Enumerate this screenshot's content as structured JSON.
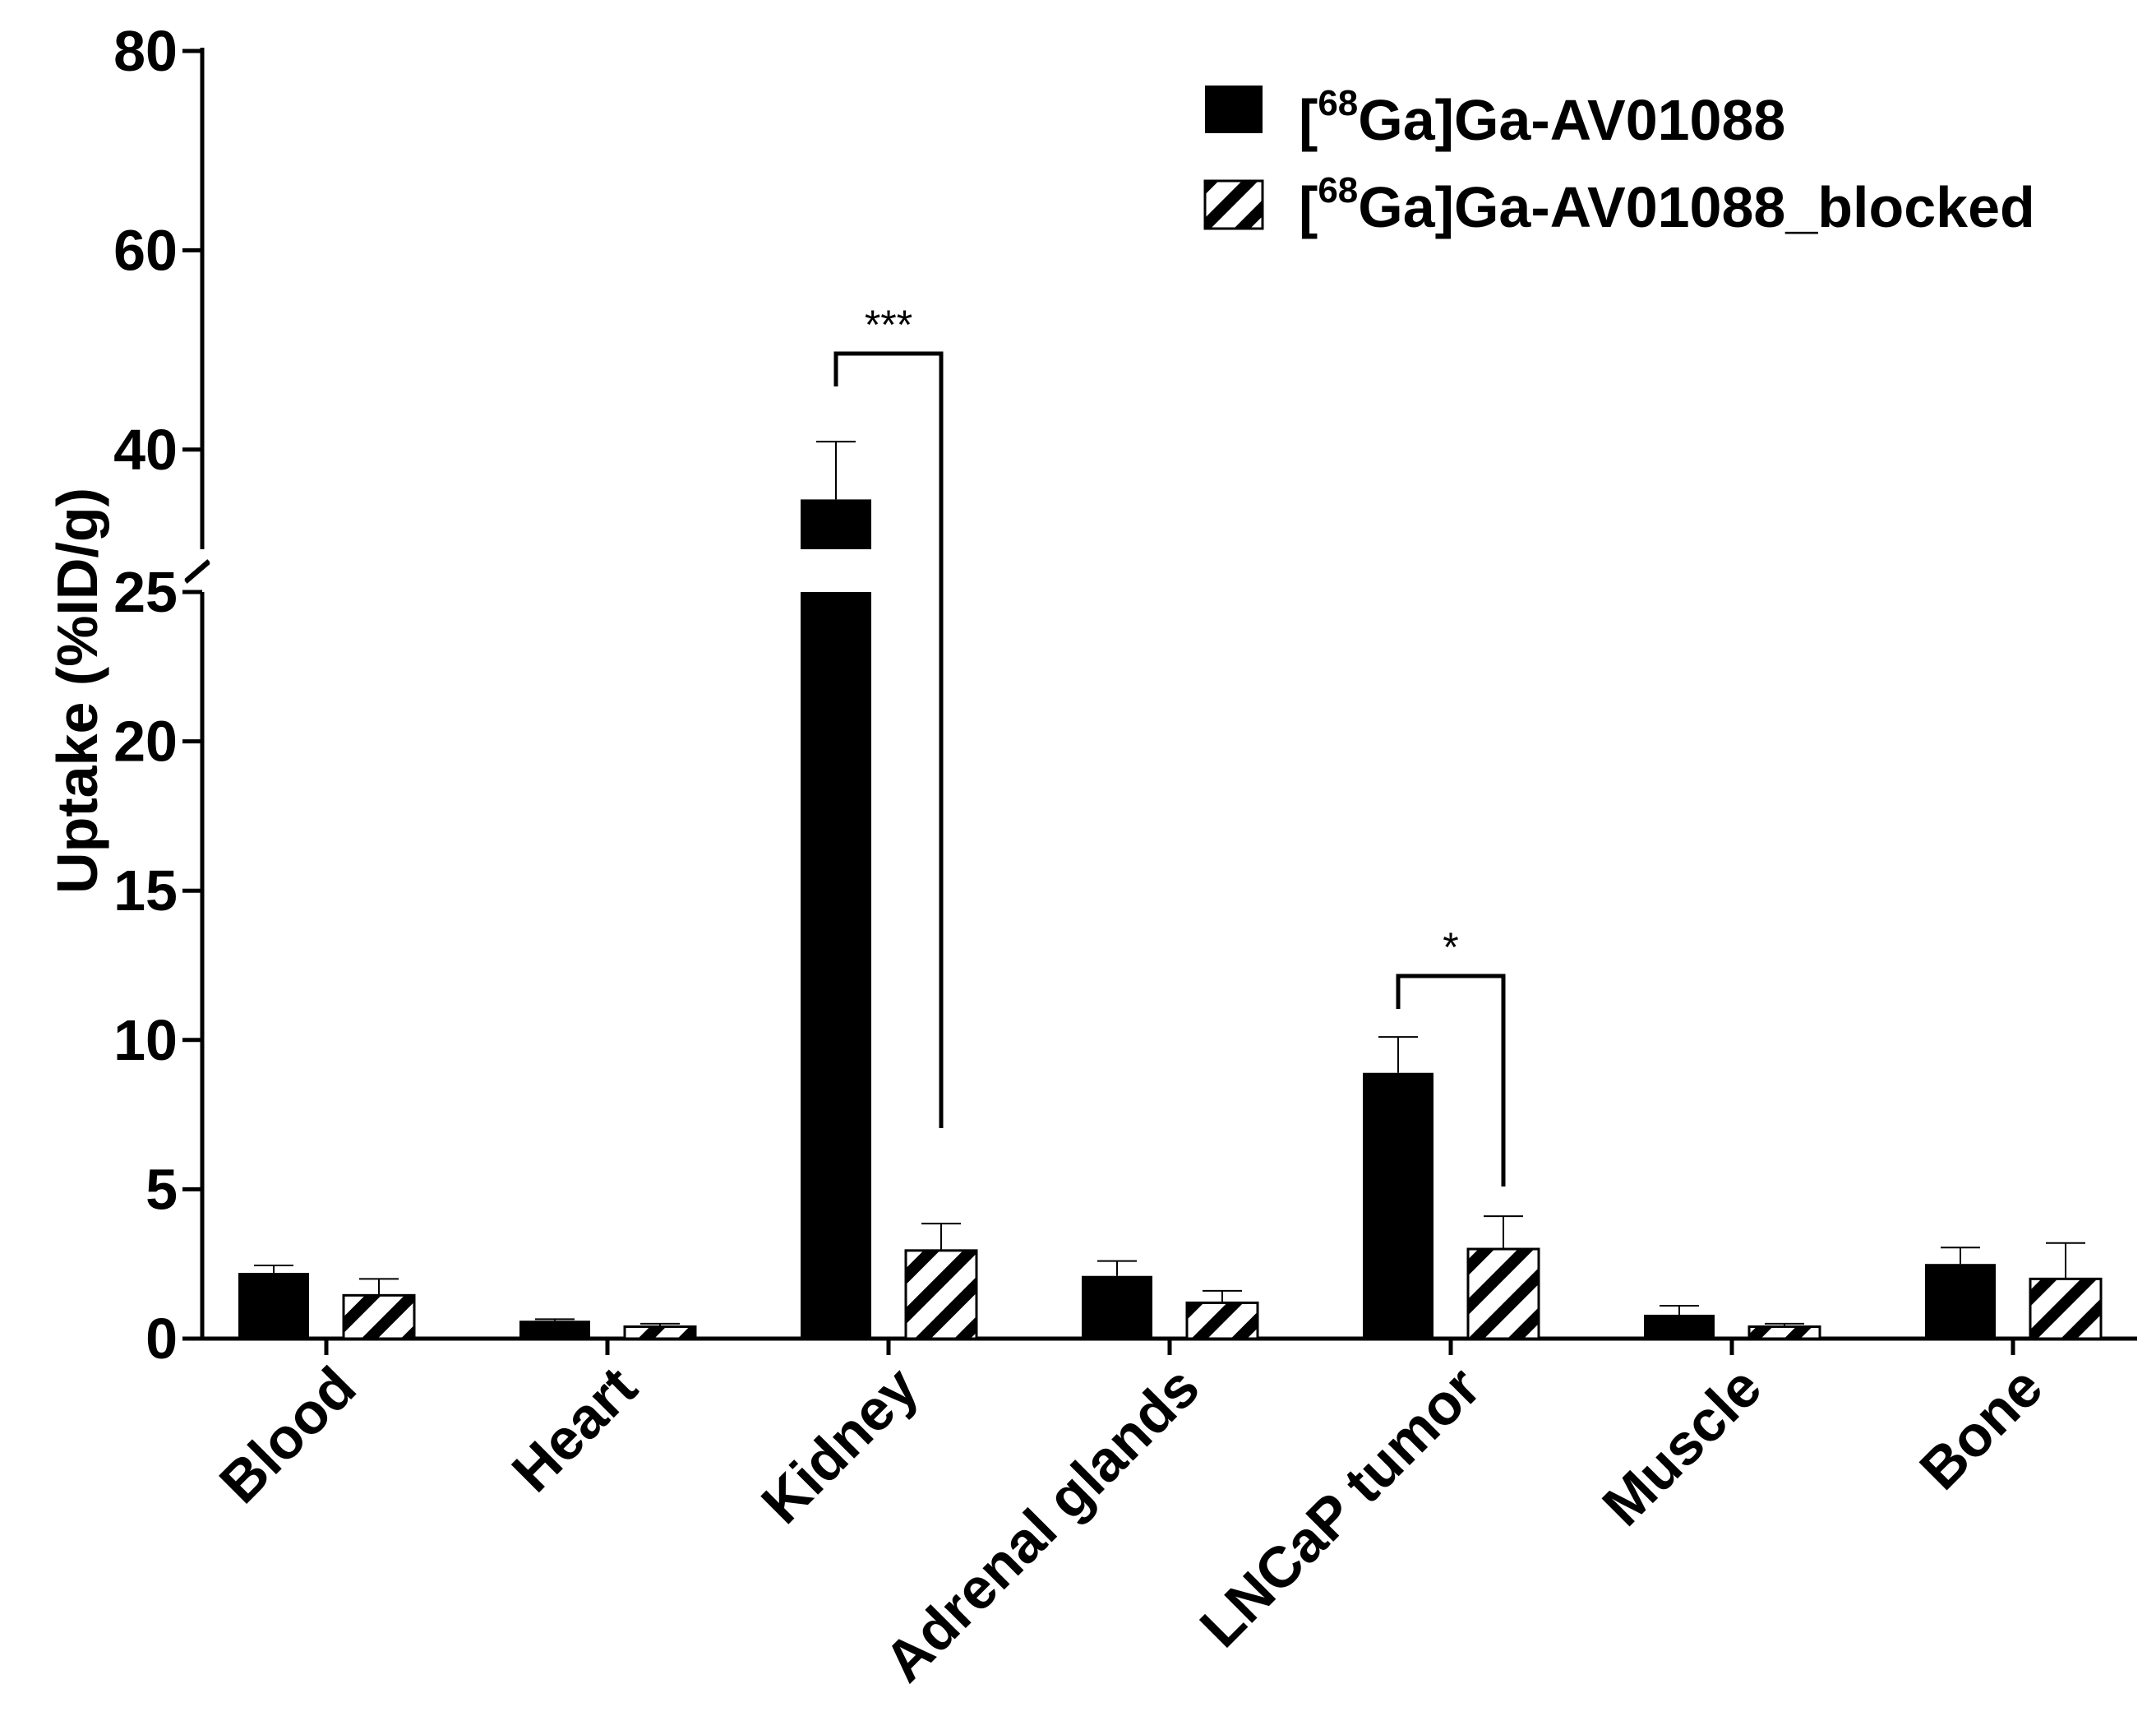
{
  "chart_data": {
    "type": "bar",
    "ylabel": "Uptake (%ID/g)",
    "y_axis_break": [
      25,
      30
    ],
    "y_ticks_lower": [
      0,
      5,
      10,
      15,
      20,
      25
    ],
    "y_ticks_upper": [
      40,
      60,
      80
    ],
    "ylim": [
      0,
      80
    ],
    "categories": [
      "Blood",
      "Heart",
      "Kidney",
      "Adrenal glands",
      "LNCaP tumor",
      "Muscle",
      "Bone"
    ],
    "series": [
      {
        "name_prefix": "[",
        "name_sup": "68",
        "name_rest": "Ga]Ga-AV01088",
        "fill": "solid",
        "color": "#000000",
        "values": [
          2.2,
          0.6,
          35.0,
          2.1,
          8.9,
          0.8,
          2.5
        ],
        "errors": [
          0.25,
          0.05,
          5.8,
          0.5,
          1.2,
          0.3,
          0.55
        ]
      },
      {
        "name_prefix": "[",
        "name_sup": "68",
        "name_rest": "Ga]Ga-AV01088_blocked",
        "fill": "hatched",
        "color": "#000000",
        "values": [
          1.45,
          0.4,
          2.95,
          1.2,
          3.0,
          0.4,
          2.0
        ],
        "errors": [
          0.55,
          0.1,
          0.9,
          0.4,
          1.1,
          0.1,
          1.2
        ]
      }
    ],
    "significance": [
      {
        "category": "Kidney",
        "label": "***"
      },
      {
        "category": "LNCaP tumor",
        "label": "*"
      }
    ],
    "legend_position": "top-right",
    "grid": false
  }
}
